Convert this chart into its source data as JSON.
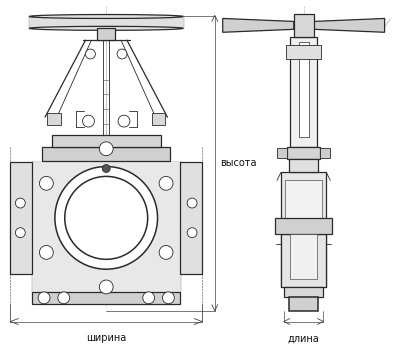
{
  "bg_color": "#ffffff",
  "line_color": "#2a2a2a",
  "dim_line_color": "#444444",
  "label_color": "#111111",
  "label_ширина": "ширина",
  "label_длина": "длина",
  "label_высота": "высота",
  "fig_width": 4.0,
  "fig_height": 3.46,
  "dpi": 100,
  "font_size": 7.0
}
